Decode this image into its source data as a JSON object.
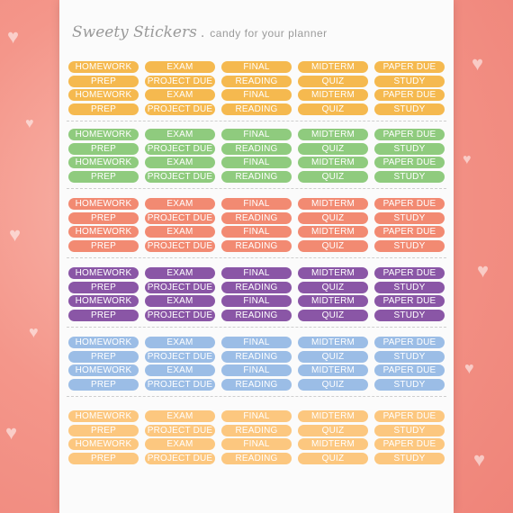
{
  "header": {
    "brand": "Sweety Stickers",
    "separator": ".",
    "tagline": "candy for your planner"
  },
  "rows": [
    [
      "HOMEWORK",
      "EXAM",
      "FINAL",
      "MIDTERM",
      "PAPER DUE"
    ],
    [
      "PREP",
      "PROJECT DUE",
      "READING",
      "QUIZ",
      "STUDY"
    ],
    [
      "HOMEWORK",
      "EXAM",
      "FINAL",
      "MIDTERM",
      "PAPER DUE"
    ],
    [
      "PREP",
      "PROJECT DUE",
      "READING",
      "QUIZ",
      "STUDY"
    ]
  ],
  "color_groups": [
    {
      "color": "#f5b94f"
    },
    {
      "color": "#8fcb7e"
    },
    {
      "color": "#f28a72"
    },
    {
      "color": "#8a56a6"
    },
    {
      "color": "#9bbde6"
    },
    {
      "color": "#fcc77f"
    }
  ],
  "colors": {
    "background": "#f4968a",
    "sheet": "#fbfbfb",
    "text_muted": "#9a9a9a"
  }
}
